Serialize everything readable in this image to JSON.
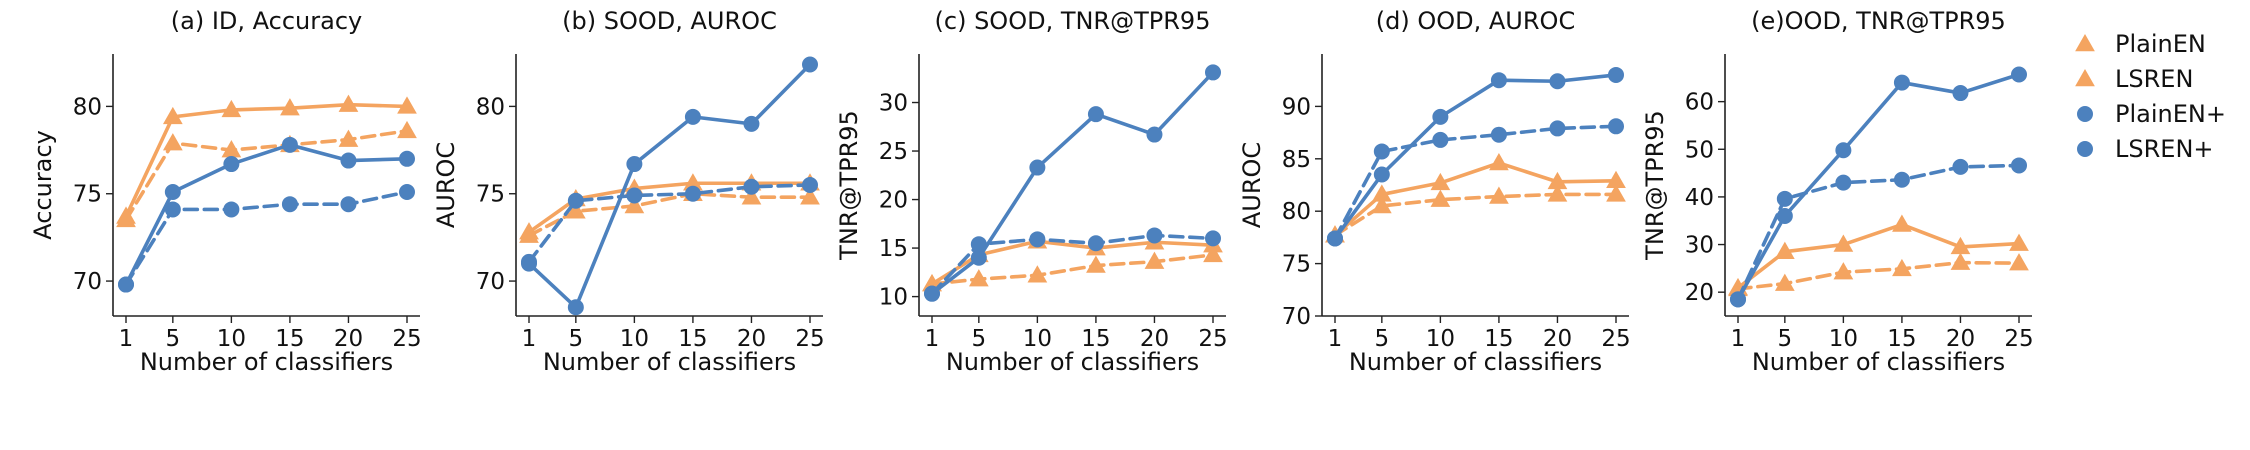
{
  "legend": {
    "placement": "right",
    "entries": [
      {
        "name": "PlainEN",
        "color": "#F4A460",
        "marker": "triangle",
        "dash": false
      },
      {
        "name": "LSREN",
        "color": "#F4A460",
        "marker": "triangle",
        "dash": true
      },
      {
        "name": "PlainEN+",
        "color": "#4C81BE",
        "marker": "circle",
        "dash": false
      },
      {
        "name": "LSREN+",
        "color": "#4C81BE",
        "marker": "circle",
        "dash": true
      }
    ]
  },
  "chart_data": [
    {
      "type": "line",
      "title": "(a) ID, Accuracy",
      "xlabel": "Number of classifiers",
      "ylabel": "Accuracy",
      "x": [
        1,
        5,
        10,
        15,
        20,
        25
      ],
      "xticks": [
        1,
        5,
        10,
        15,
        20,
        25
      ],
      "ylim": [
        68,
        83
      ],
      "yticks": [
        70,
        75,
        80
      ],
      "grid": false,
      "series": [
        {
          "name": "PlainEN",
          "values": [
            73.7,
            79.4,
            79.8,
            79.9,
            80.1,
            80.0
          ]
        },
        {
          "name": "LSREN",
          "values": [
            73.5,
            77.9,
            77.5,
            77.8,
            78.1,
            78.6
          ]
        },
        {
          "name": "PlainEN+",
          "values": [
            69.8,
            75.1,
            76.7,
            77.8,
            76.9,
            77.0
          ]
        },
        {
          "name": "LSREN+",
          "values": [
            69.8,
            74.1,
            74.1,
            74.4,
            74.4,
            75.1
          ]
        }
      ]
    },
    {
      "type": "line",
      "title": "(b) SOOD, AUROC",
      "xlabel": "Number of classifiers",
      "ylabel": "AUROC",
      "x": [
        1,
        5,
        10,
        15,
        20,
        25
      ],
      "xticks": [
        1,
        5,
        10,
        15,
        20,
        25
      ],
      "ylim": [
        68,
        83
      ],
      "yticks": [
        70,
        75,
        80
      ],
      "grid": false,
      "series": [
        {
          "name": "PlainEN",
          "values": [
            72.8,
            74.7,
            75.3,
            75.6,
            75.6,
            75.6
          ]
        },
        {
          "name": "LSREN",
          "values": [
            72.6,
            74.0,
            74.3,
            75.0,
            74.8,
            74.8
          ]
        },
        {
          "name": "PlainEN+",
          "values": [
            71.0,
            68.5,
            76.7,
            79.4,
            79.0,
            82.4
          ]
        },
        {
          "name": "LSREN+",
          "values": [
            71.1,
            74.6,
            74.9,
            75.0,
            75.4,
            75.5
          ]
        }
      ]
    },
    {
      "type": "line",
      "title": "(c) SOOD, TNR@TPR95",
      "xlabel": "Number of classifiers",
      "ylabel": "TNR@TPR95",
      "x": [
        1,
        5,
        10,
        15,
        20,
        25
      ],
      "xticks": [
        1,
        5,
        10,
        15,
        20,
        25
      ],
      "ylim": [
        8,
        35
      ],
      "yticks": [
        10,
        15,
        20,
        25,
        30
      ],
      "grid": false,
      "series": [
        {
          "name": "PlainEN",
          "values": [
            11.3,
            14.3,
            15.7,
            15.0,
            15.6,
            15.3
          ]
        },
        {
          "name": "LSREN",
          "values": [
            11.3,
            11.8,
            12.2,
            13.2,
            13.6,
            14.3
          ]
        },
        {
          "name": "PlainEN+",
          "values": [
            10.3,
            14.0,
            23.3,
            28.8,
            26.7,
            33.1
          ]
        },
        {
          "name": "LSREN+",
          "values": [
            10.3,
            15.4,
            15.9,
            15.5,
            16.3,
            16.0
          ]
        }
      ]
    },
    {
      "type": "line",
      "title": "(d) OOD, AUROC",
      "xlabel": "Number of classifiers",
      "ylabel": "AUROC",
      "x": [
        1,
        5,
        10,
        15,
        20,
        25
      ],
      "xticks": [
        1,
        5,
        10,
        15,
        20,
        25
      ],
      "ylim": [
        70,
        95
      ],
      "yticks": [
        70,
        75,
        80,
        85,
        90
      ],
      "grid": false,
      "series": [
        {
          "name": "PlainEN",
          "values": [
            77.7,
            81.6,
            82.7,
            84.6,
            82.8,
            82.9
          ]
        },
        {
          "name": "LSREN",
          "values": [
            77.7,
            80.5,
            81.1,
            81.4,
            81.6,
            81.6
          ]
        },
        {
          "name": "PlainEN+",
          "values": [
            77.4,
            83.5,
            89.0,
            92.5,
            92.4,
            93.0
          ]
        },
        {
          "name": "LSREN+",
          "values": [
            77.4,
            85.7,
            86.8,
            87.3,
            87.9,
            88.1
          ]
        }
      ]
    },
    {
      "type": "line",
      "title": "(e)OOD, TNR@TPR95",
      "xlabel": "Number of classifiers",
      "ylabel": "TNR@TPR95",
      "x": [
        1,
        5,
        10,
        15,
        20,
        25
      ],
      "xticks": [
        1,
        5,
        10,
        15,
        20,
        25
      ],
      "ylim": [
        15,
        70
      ],
      "yticks": [
        20,
        30,
        40,
        50,
        60
      ],
      "grid": false,
      "series": [
        {
          "name": "PlainEN",
          "values": [
            20.9,
            28.5,
            30.0,
            34.2,
            29.5,
            30.2
          ]
        },
        {
          "name": "LSREN",
          "values": [
            20.7,
            21.8,
            24.2,
            24.9,
            26.2,
            26.1
          ]
        },
        {
          "name": "PlainEN+",
          "values": [
            18.5,
            36.0,
            49.8,
            64.0,
            61.8,
            65.7
          ]
        },
        {
          "name": "LSREN+",
          "values": [
            18.5,
            39.6,
            43.0,
            43.6,
            46.3,
            46.6
          ]
        }
      ]
    }
  ]
}
